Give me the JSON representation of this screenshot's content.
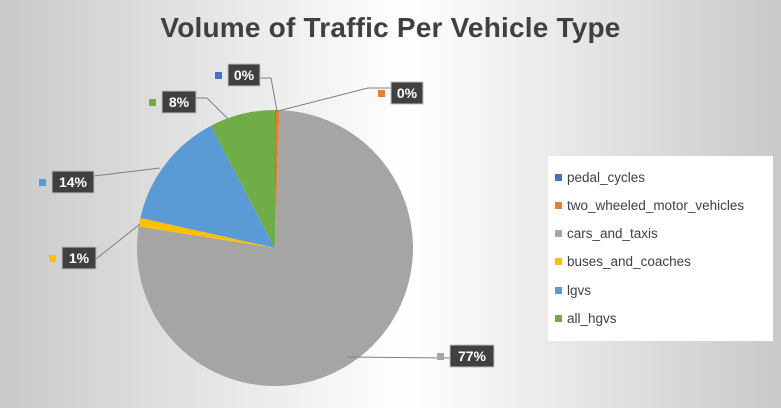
{
  "chart_data": {
    "type": "pie",
    "title": "Volume of Traffic Per Vehicle Type",
    "legend_position": "right",
    "slices": [
      {
        "label": "pedal_cycles",
        "value": 0.1,
        "percent_label": "0%",
        "color": "#4472c4"
      },
      {
        "label": "two_wheeled_motor_vehicles",
        "value": 0.4,
        "percent_label": "0%",
        "color": "#ed7d31"
      },
      {
        "label": "cars_and_taxis",
        "value": 77.0,
        "percent_label": "77%",
        "color": "#a5a5a5"
      },
      {
        "label": "buses_and_coaches",
        "value": 1.0,
        "percent_label": "1%",
        "color": "#ffc000"
      },
      {
        "label": "lgvs",
        "value": 13.8,
        "percent_label": "14%",
        "color": "#5b9bd5"
      },
      {
        "label": "all_hgvs",
        "value": 7.7,
        "percent_label": "8%",
        "color": "#70ad47"
      }
    ]
  }
}
